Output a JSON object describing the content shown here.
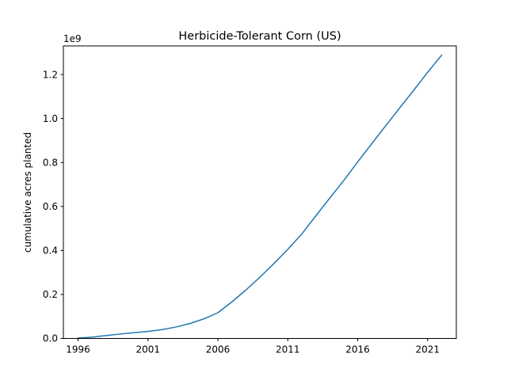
{
  "chart_data": {
    "type": "line",
    "title": "Herbicide-Tolerant Corn (US)",
    "xlabel": "",
    "ylabel": "cumulative acres planted",
    "y_offset_label": "1e9",
    "y_scale_factor": 1000000000,
    "xlim": [
      1994.95,
      2023.05
    ],
    "ylim": [
      0,
      1330000000
    ],
    "x_ticks": [
      1996,
      2001,
      2006,
      2011,
      2016,
      2021
    ],
    "y_ticks": [
      0.0,
      0.2,
      0.4,
      0.6,
      0.8,
      1.0,
      1.2
    ],
    "grid": false,
    "series": [
      {
        "color": "#1f77b4",
        "x": [
          1996,
          1997,
          1998,
          1999,
          2000,
          2001,
          2002,
          2003,
          2004,
          2005,
          2006,
          2007,
          2008,
          2009,
          2010,
          2011,
          2012,
          2013,
          2014,
          2015,
          2016,
          2017,
          2018,
          2019,
          2020,
          2021,
          2022
        ],
        "y": [
          2000000,
          6000000,
          13000000,
          20000000,
          26000000,
          32000000,
          40000000,
          52000000,
          68000000,
          89000000,
          117000000,
          166000000,
          220000000,
          278000000,
          340000000,
          405000000,
          475000000,
          557000000,
          638000000,
          718000000,
          803000000,
          885000000,
          967000000,
          1048000000,
          1128000000,
          1210000000,
          1288000000
        ]
      }
    ]
  }
}
